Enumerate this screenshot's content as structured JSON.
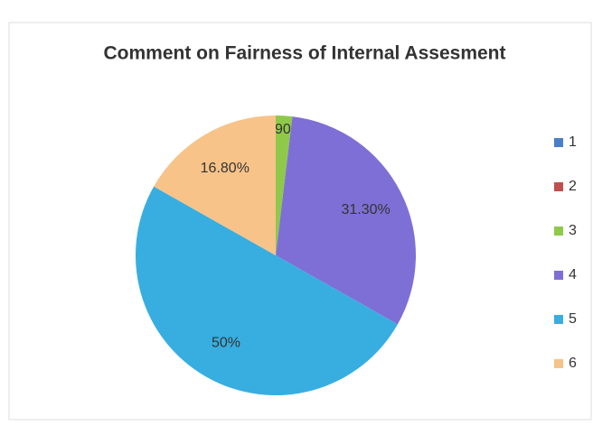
{
  "chart_data": {
    "type": "pie",
    "title": "Comment on Fairness of Internal Assesment",
    "categories": [
      "1",
      "2",
      "3",
      "4",
      "5",
      "6"
    ],
    "values": [
      0,
      0,
      1.9,
      31.3,
      50,
      16.8
    ],
    "value_labels": [
      null,
      null,
      "1.90%",
      "31.30%",
      "50%",
      "16.80%"
    ],
    "colors": [
      "#4a7fc8",
      "#c0504d",
      "#8ec94a",
      "#7e6fd6",
      "#38aee0",
      "#f7c389"
    ],
    "legend": "right"
  }
}
